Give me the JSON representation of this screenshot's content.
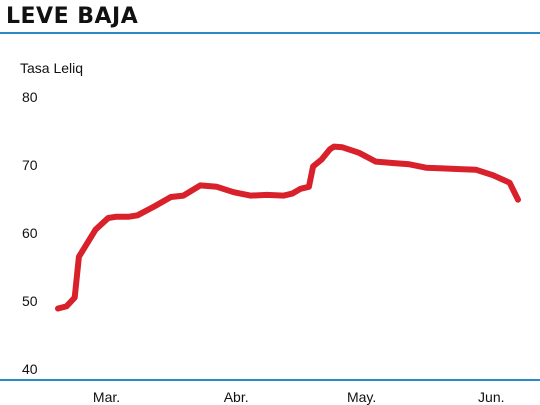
{
  "header": {
    "title": "LEVE BAJA"
  },
  "colors": {
    "line": "#d8212a",
    "axis": "#2a8bc4",
    "text": "#111111"
  },
  "chart_data": {
    "type": "line",
    "title": "LEVE BAJA",
    "xlabel": "",
    "ylabel": "Tasa Leliq",
    "ylim": [
      40,
      80
    ],
    "yticks": [
      40,
      50,
      60,
      70,
      80
    ],
    "grid": false,
    "x_tick_labels": [
      "Mar.",
      "Abr.",
      "May.",
      "Jun."
    ],
    "series": [
      {
        "x": [
          "2020-03-01",
          "2020-03-03",
          "2020-03-05",
          "2020-03-06",
          "2020-03-10",
          "2020-03-13",
          "2020-03-15",
          "2020-03-18",
          "2020-03-20",
          "2020-03-24",
          "2020-03-28",
          "2020-03-31",
          "2020-04-04",
          "2020-04-08",
          "2020-04-12",
          "2020-04-16",
          "2020-04-20",
          "2020-04-24",
          "2020-04-26",
          "2020-04-28",
          "2020-04-30",
          "2020-05-01",
          "2020-05-03",
          "2020-05-05",
          "2020-05-06",
          "2020-05-08",
          "2020-05-12",
          "2020-05-16",
          "2020-05-20",
          "2020-05-24",
          "2020-05-28",
          "2020-06-01",
          "2020-06-05",
          "2020-06-09",
          "2020-06-13",
          "2020-06-17",
          "2020-06-19"
        ],
        "values": [
          48.9,
          49.2,
          50.5,
          56.5,
          60.5,
          62.2,
          62.4,
          62.4,
          62.6,
          63.9,
          65.3,
          65.5,
          67.0,
          66.8,
          66.0,
          65.5,
          65.6,
          65.5,
          65.8,
          66.5,
          66.8,
          69.8,
          70.8,
          72.3,
          72.7,
          72.6,
          71.8,
          70.5,
          70.3,
          70.1,
          69.6,
          69.5,
          69.4,
          69.3,
          68.5,
          67.4,
          64.9
        ]
      }
    ]
  }
}
